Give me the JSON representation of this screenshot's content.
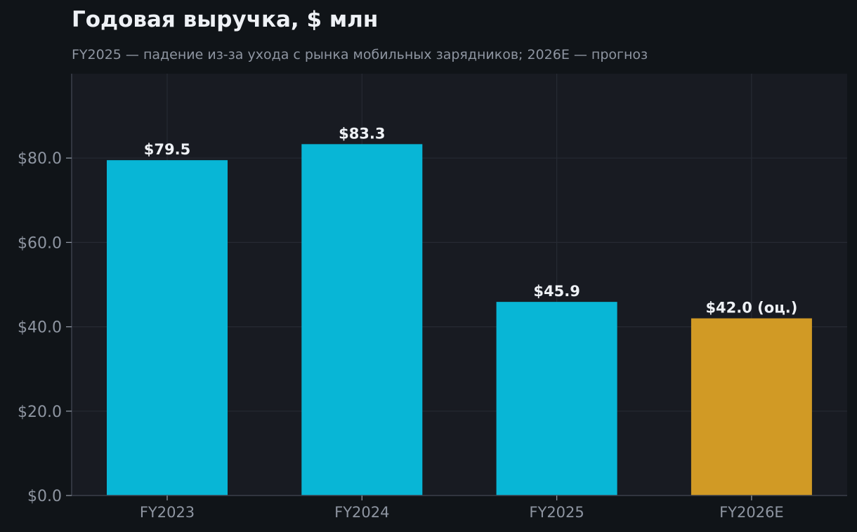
{
  "colors": {
    "page_background": "#101418",
    "plot_background": "#181b22",
    "grid": "#262a33",
    "axis": "#3a3f4a",
    "tick_text": "#8e95a1",
    "title_text": "#eef1f5",
    "subtitle_text": "#8e95a1",
    "label_text": "#eef1f5",
    "actual_bar": "#08b6d6",
    "estimate_bar": "#d19a25"
  },
  "chart_data": {
    "type": "bar",
    "title": "Годовая выручка, $ млн",
    "subtitle": "FY2025 — падение из-за ухода с рынка мобильных зарядников; 2026E — прогноз",
    "xlabel": "",
    "ylabel": "",
    "categories": [
      "FY2023",
      "FY2024",
      "FY2025",
      "FY2026E"
    ],
    "values": [
      79.5,
      83.3,
      45.9,
      42.0
    ],
    "data_labels": [
      "$79.5",
      "$83.3",
      "$45.9",
      "$42.0 (оц.)"
    ],
    "bar_kinds": [
      "actual",
      "actual",
      "actual",
      "estimate"
    ],
    "ylim": [
      0,
      100
    ],
    "yticks": [
      0,
      20,
      40,
      60,
      80
    ],
    "ytick_labels": [
      "$0.0",
      "$20.0",
      "$40.0",
      "$60.0",
      "$80.0"
    ],
    "grid": true,
    "legend": "none"
  }
}
